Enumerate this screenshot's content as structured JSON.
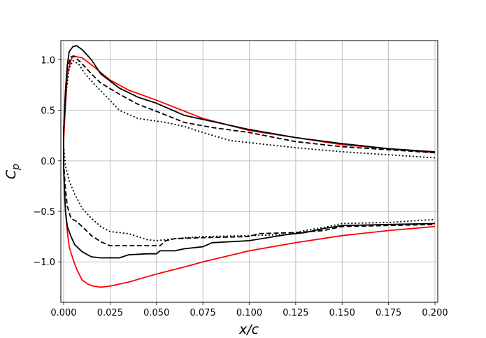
{
  "chart_data": {
    "type": "line",
    "title": "",
    "xlabel": "x/c",
    "ylabel_main": "C",
    "ylabel_sub": "p",
    "xlim": [
      -0.0015,
      0.2015
    ],
    "ylim": [
      -1.4,
      1.19
    ],
    "x_ticks": [
      0.0,
      0.025,
      0.05,
      0.075,
      0.1,
      0.125,
      0.15,
      0.175,
      0.2
    ],
    "x_tick_labels": [
      "0.000",
      "0.025",
      "0.050",
      "0.075",
      "0.100",
      "0.125",
      "0.150",
      "0.175",
      "0.200"
    ],
    "y_ticks": [
      1.0,
      0.5,
      0.0,
      -0.5,
      -1.0
    ],
    "y_tick_labels": [
      "1.0",
      "0.5",
      "0.0",
      "−0.5",
      "−1.0"
    ],
    "grid": true,
    "legend": "none",
    "series": [
      {
        "color": "#ff0000",
        "dash": "solid",
        "points": [
          [
            0.2,
            0.08
          ],
          [
            0.175,
            0.12
          ],
          [
            0.15,
            0.16
          ],
          [
            0.125,
            0.23
          ],
          [
            0.1,
            0.3
          ],
          [
            0.075,
            0.42
          ],
          [
            0.05,
            0.6
          ],
          [
            0.035,
            0.7
          ],
          [
            0.025,
            0.8
          ],
          [
            0.015,
            0.95
          ],
          [
            0.01,
            1.02
          ],
          [
            0.007,
            1.03
          ],
          [
            0.005,
            1.04
          ],
          [
            0.004,
            1.0
          ],
          [
            0.002,
            0.85
          ],
          [
            0.001,
            0.55
          ],
          [
            0.0,
            0.2
          ],
          [
            0.0,
            -0.1
          ],
          [
            0.0005,
            -0.3
          ],
          [
            0.001,
            -0.5
          ],
          [
            0.002,
            -0.7
          ],
          [
            0.003,
            -0.85
          ],
          [
            0.005,
            -0.97
          ],
          [
            0.007,
            -1.07
          ],
          [
            0.01,
            -1.18
          ],
          [
            0.013,
            -1.22
          ],
          [
            0.016,
            -1.24
          ],
          [
            0.02,
            -1.25
          ],
          [
            0.025,
            -1.24
          ],
          [
            0.035,
            -1.2
          ],
          [
            0.05,
            -1.12
          ],
          [
            0.065,
            -1.05
          ],
          [
            0.075,
            -1.0
          ],
          [
            0.1,
            -0.89
          ],
          [
            0.125,
            -0.81
          ],
          [
            0.15,
            -0.74
          ],
          [
            0.175,
            -0.69
          ],
          [
            0.2,
            -0.65
          ]
        ]
      },
      {
        "color": "#000000",
        "dash": "solid",
        "points": [
          [
            0.2,
            0.09
          ],
          [
            0.175,
            0.12
          ],
          [
            0.15,
            0.17
          ],
          [
            0.125,
            0.23
          ],
          [
            0.1,
            0.31
          ],
          [
            0.075,
            0.41
          ],
          [
            0.065,
            0.45
          ],
          [
            0.05,
            0.57
          ],
          [
            0.04,
            0.63
          ],
          [
            0.03,
            0.72
          ],
          [
            0.025,
            0.79
          ],
          [
            0.02,
            0.86
          ],
          [
            0.015,
            1.0
          ],
          [
            0.01,
            1.1
          ],
          [
            0.007,
            1.14
          ],
          [
            0.005,
            1.13
          ],
          [
            0.003,
            1.08
          ],
          [
            0.002,
            0.95
          ],
          [
            0.001,
            0.7
          ],
          [
            0.0,
            0.3
          ],
          [
            0.0,
            -0.05
          ],
          [
            0.0005,
            -0.3
          ],
          [
            0.001,
            -0.5
          ],
          [
            0.002,
            -0.65
          ],
          [
            0.004,
            -0.75
          ],
          [
            0.006,
            -0.83
          ],
          [
            0.01,
            -0.9
          ],
          [
            0.015,
            -0.95
          ],
          [
            0.02,
            -0.96
          ],
          [
            0.03,
            -0.96
          ],
          [
            0.035,
            -0.93
          ],
          [
            0.045,
            -0.92
          ],
          [
            0.05,
            -0.92
          ],
          [
            0.052,
            -0.89
          ],
          [
            0.06,
            -0.89
          ],
          [
            0.065,
            -0.87
          ],
          [
            0.075,
            -0.85
          ],
          [
            0.08,
            -0.81
          ],
          [
            0.09,
            -0.8
          ],
          [
            0.1,
            -0.79
          ],
          [
            0.12,
            -0.73
          ],
          [
            0.13,
            -0.71
          ],
          [
            0.14,
            -0.67
          ],
          [
            0.15,
            -0.64
          ],
          [
            0.175,
            -0.63
          ],
          [
            0.2,
            -0.62
          ]
        ]
      },
      {
        "color": "#000000",
        "dash": "dashed",
        "points": [
          [
            0.2,
            0.08
          ],
          [
            0.175,
            0.11
          ],
          [
            0.15,
            0.14
          ],
          [
            0.125,
            0.19
          ],
          [
            0.1,
            0.28
          ],
          [
            0.08,
            0.33
          ],
          [
            0.065,
            0.38
          ],
          [
            0.05,
            0.49
          ],
          [
            0.04,
            0.56
          ],
          [
            0.03,
            0.66
          ],
          [
            0.02,
            0.77
          ],
          [
            0.015,
            0.86
          ],
          [
            0.01,
            0.96
          ],
          [
            0.006,
            1.03
          ],
          [
            0.004,
            1.03
          ],
          [
            0.002,
            0.92
          ],
          [
            0.001,
            0.68
          ],
          [
            0.0,
            0.3
          ],
          [
            0.0,
            0.0
          ],
          [
            0.0008,
            -0.25
          ],
          [
            0.002,
            -0.45
          ],
          [
            0.004,
            -0.57
          ],
          [
            0.007,
            -0.6
          ],
          [
            0.01,
            -0.65
          ],
          [
            0.015,
            -0.74
          ],
          [
            0.02,
            -0.8
          ],
          [
            0.025,
            -0.84
          ],
          [
            0.03,
            -0.84
          ],
          [
            0.04,
            -0.84
          ],
          [
            0.052,
            -0.84
          ],
          [
            0.055,
            -0.79
          ],
          [
            0.06,
            -0.77
          ],
          [
            0.075,
            -0.76
          ],
          [
            0.1,
            -0.75
          ],
          [
            0.105,
            -0.72
          ],
          [
            0.125,
            -0.71
          ],
          [
            0.14,
            -0.69
          ],
          [
            0.15,
            -0.65
          ],
          [
            0.175,
            -0.64
          ],
          [
            0.2,
            -0.63
          ]
        ]
      },
      {
        "color": "#000000",
        "dash": "dotted",
        "points": [
          [
            0.2,
            0.03
          ],
          [
            0.175,
            0.06
          ],
          [
            0.15,
            0.09
          ],
          [
            0.125,
            0.13
          ],
          [
            0.1,
            0.18
          ],
          [
            0.09,
            0.2
          ],
          [
            0.075,
            0.28
          ],
          [
            0.065,
            0.34
          ],
          [
            0.055,
            0.38
          ],
          [
            0.04,
            0.42
          ],
          [
            0.03,
            0.5
          ],
          [
            0.025,
            0.6
          ],
          [
            0.018,
            0.73
          ],
          [
            0.012,
            0.85
          ],
          [
            0.008,
            0.96
          ],
          [
            0.005,
            0.99
          ],
          [
            0.003,
            0.92
          ],
          [
            0.0015,
            0.7
          ],
          [
            0.0,
            0.3
          ],
          [
            0.0,
            0.15
          ],
          [
            0.001,
            -0.05
          ],
          [
            0.003,
            -0.2
          ],
          [
            0.006,
            -0.33
          ],
          [
            0.01,
            -0.47
          ],
          [
            0.015,
            -0.57
          ],
          [
            0.02,
            -0.65
          ],
          [
            0.025,
            -0.7
          ],
          [
            0.035,
            -0.72
          ],
          [
            0.045,
            -0.78
          ],
          [
            0.05,
            -0.79
          ],
          [
            0.06,
            -0.77
          ],
          [
            0.075,
            -0.75
          ],
          [
            0.1,
            -0.74
          ],
          [
            0.12,
            -0.73
          ],
          [
            0.13,
            -0.69
          ],
          [
            0.14,
            -0.66
          ],
          [
            0.15,
            -0.62
          ],
          [
            0.175,
            -0.61
          ],
          [
            0.2,
            -0.58
          ]
        ]
      }
    ]
  }
}
